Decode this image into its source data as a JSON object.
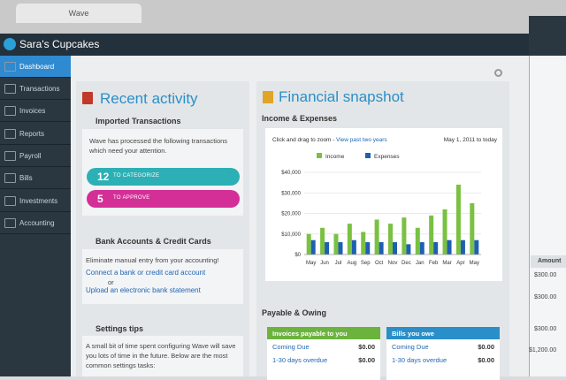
{
  "browser": {
    "tab": "Wave"
  },
  "header": {
    "title": "Sara's Cupcakes"
  },
  "nav": {
    "items": [
      "Dashboard",
      "Transactions",
      "Invoices",
      "Reports",
      "Payroll",
      "Bills",
      "Investments",
      "Accounting"
    ]
  },
  "recent_activity": {
    "title": "Recent activity",
    "imported": {
      "title": "Imported Transactions",
      "text": "Wave has processed the following transactions which need your attention.",
      "buttons": [
        {
          "count": "12",
          "label": "TO CATEGORIZE"
        },
        {
          "count": "5",
          "label": "TO APPROVE"
        }
      ]
    },
    "bank": {
      "title": "Bank Accounts & Credit Cards",
      "text": "Eliminate manual entry from your accounting!",
      "link1": "Connect a bank or credit card account",
      "or": "or",
      "link2": "Upload an electronic bank statement"
    },
    "tips": {
      "title": "Settings tips",
      "text": "A small bit of time spent configuring Wave will save you lots of time in the future. Below are the most common settings tasks:"
    }
  },
  "financial_snapshot": {
    "title": "Financial snapshot",
    "section": "Income & Expenses",
    "chart": {
      "type": "bar",
      "zoom_text": "Click and drag to zoom -",
      "zoom_link": "View past two years",
      "range_text": "May 1, 2011 to today",
      "categories": [
        "May",
        "Jun",
        "Jul",
        "Aug",
        "Sep",
        "Oct",
        "Nov",
        "Dec",
        "Jan",
        "Feb",
        "Mar",
        "Apr",
        "May"
      ],
      "series": [
        {
          "name": "Income",
          "color": "#7ac142",
          "values": [
            10000,
            13000,
            10000,
            15000,
            11000,
            17000,
            15000,
            18000,
            13000,
            19000,
            22000,
            34000,
            25000
          ]
        },
        {
          "name": "Expenses",
          "color": "#1f5fb0",
          "values": [
            7000,
            6000,
            6000,
            7000,
            6000,
            6000,
            6000,
            5000,
            6000,
            6000,
            7000,
            7000,
            7000
          ]
        }
      ],
      "ylim": [
        0,
        40000
      ],
      "yticks": [
        {
          "value": 0,
          "label": "$0"
        },
        {
          "value": 10000,
          "label": "$10,000"
        },
        {
          "value": 20000,
          "label": "$20,000"
        },
        {
          "value": 30000,
          "label": "$30,000"
        },
        {
          "value": 40000,
          "label": "$40,000"
        }
      ],
      "grid": true
    }
  },
  "payable": {
    "title": "Payable & Owing",
    "panels": [
      {
        "title": "Invoices payable to you",
        "rows": [
          [
            "Coming Due",
            "$0.00"
          ],
          [
            "1-30 days overdue",
            "$0.00"
          ]
        ]
      },
      {
        "title": "Bills you owe",
        "rows": [
          [
            "Coming Due",
            "$0.00"
          ],
          [
            "1-30 days overdue",
            "$0.00"
          ]
        ]
      }
    ]
  },
  "background_window": {
    "header": "Amount",
    "rows": [
      "$300.00",
      "$300.00",
      "$300.00",
      "$1,200.00"
    ]
  }
}
